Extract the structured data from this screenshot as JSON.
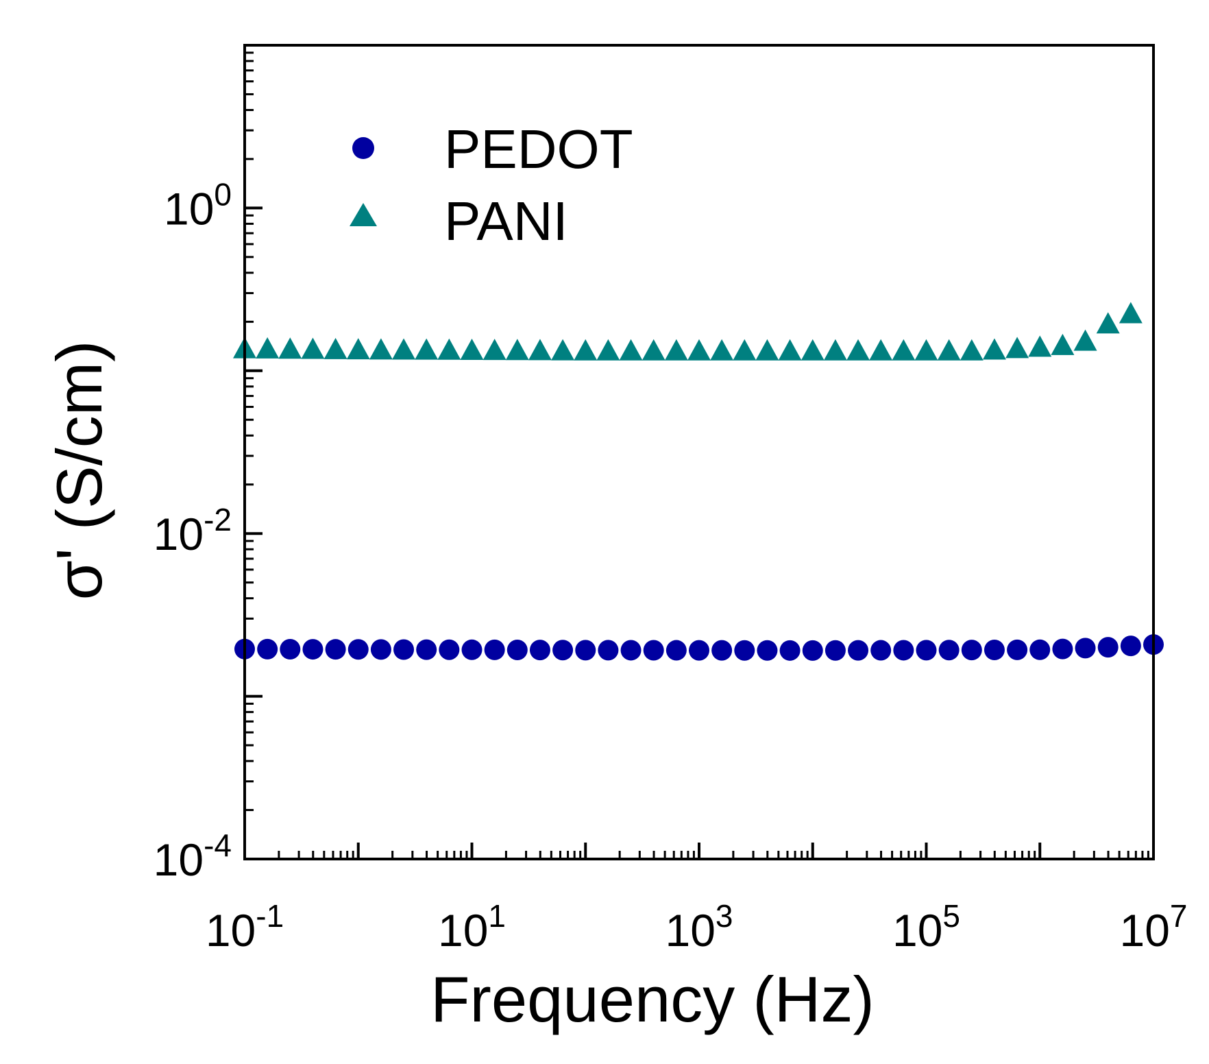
{
  "chart_data": {
    "type": "scatter",
    "xlabel": "Frequency (Hz)",
    "ylabel": "σ' (S/cm)",
    "x_scale": "log",
    "y_scale": "log",
    "xlim": [
      0.1,
      10000000
    ],
    "ylim": [
      0.0001,
      10
    ],
    "x_ticks": [
      {
        "value": 0.1,
        "base": "10",
        "exp": "-1"
      },
      {
        "value": 10,
        "base": "10",
        "exp": "1"
      },
      {
        "value": 1000,
        "base": "10",
        "exp": "3"
      },
      {
        "value": 100000,
        "base": "10",
        "exp": "5"
      },
      {
        "value": 10000000,
        "base": "10",
        "exp": "7"
      }
    ],
    "y_ticks": [
      {
        "value": 0.0001,
        "base": "10",
        "exp": "-4"
      },
      {
        "value": 0.01,
        "base": "10",
        "exp": "-2"
      },
      {
        "value": 1,
        "base": "10",
        "exp": "0"
      }
    ],
    "grid": false,
    "legend_position": "top-left",
    "series": [
      {
        "name": "PEDOT",
        "marker": "circle",
        "color": "#0000a0",
        "log10_x_range": [
          -1,
          7
        ],
        "points": [
          {
            "x": 0.1,
            "y": 0.00195
          },
          {
            "x": 100,
            "y": 0.00192
          },
          {
            "x": 10000,
            "y": 0.00191
          },
          {
            "x": 1000000,
            "y": 0.00193
          },
          {
            "x": 4000000,
            "y": 0.002
          },
          {
            "x": 10000000,
            "y": 0.00208
          }
        ]
      },
      {
        "name": "PANI",
        "marker": "triangle",
        "color": "#008080",
        "log10_x_range": [
          -1,
          6.7
        ],
        "points": [
          {
            "x": 0.1,
            "y": 0.134
          },
          {
            "x": 1,
            "y": 0.132
          },
          {
            "x": 100,
            "y": 0.13
          },
          {
            "x": 10000,
            "y": 0.13
          },
          {
            "x": 300000,
            "y": 0.13
          },
          {
            "x": 1000000,
            "y": 0.137
          },
          {
            "x": 2000000,
            "y": 0.142
          },
          {
            "x": 3000000,
            "y": 0.155
          },
          {
            "x": 3800000,
            "y": 0.185
          },
          {
            "x": 5000000,
            "y": 0.22
          }
        ]
      }
    ]
  },
  "legend": {
    "items": [
      {
        "label": "PEDOT",
        "marker": "circle",
        "color": "#0000a0"
      },
      {
        "label": "PANI",
        "marker": "triangle",
        "color": "#008080"
      }
    ]
  }
}
